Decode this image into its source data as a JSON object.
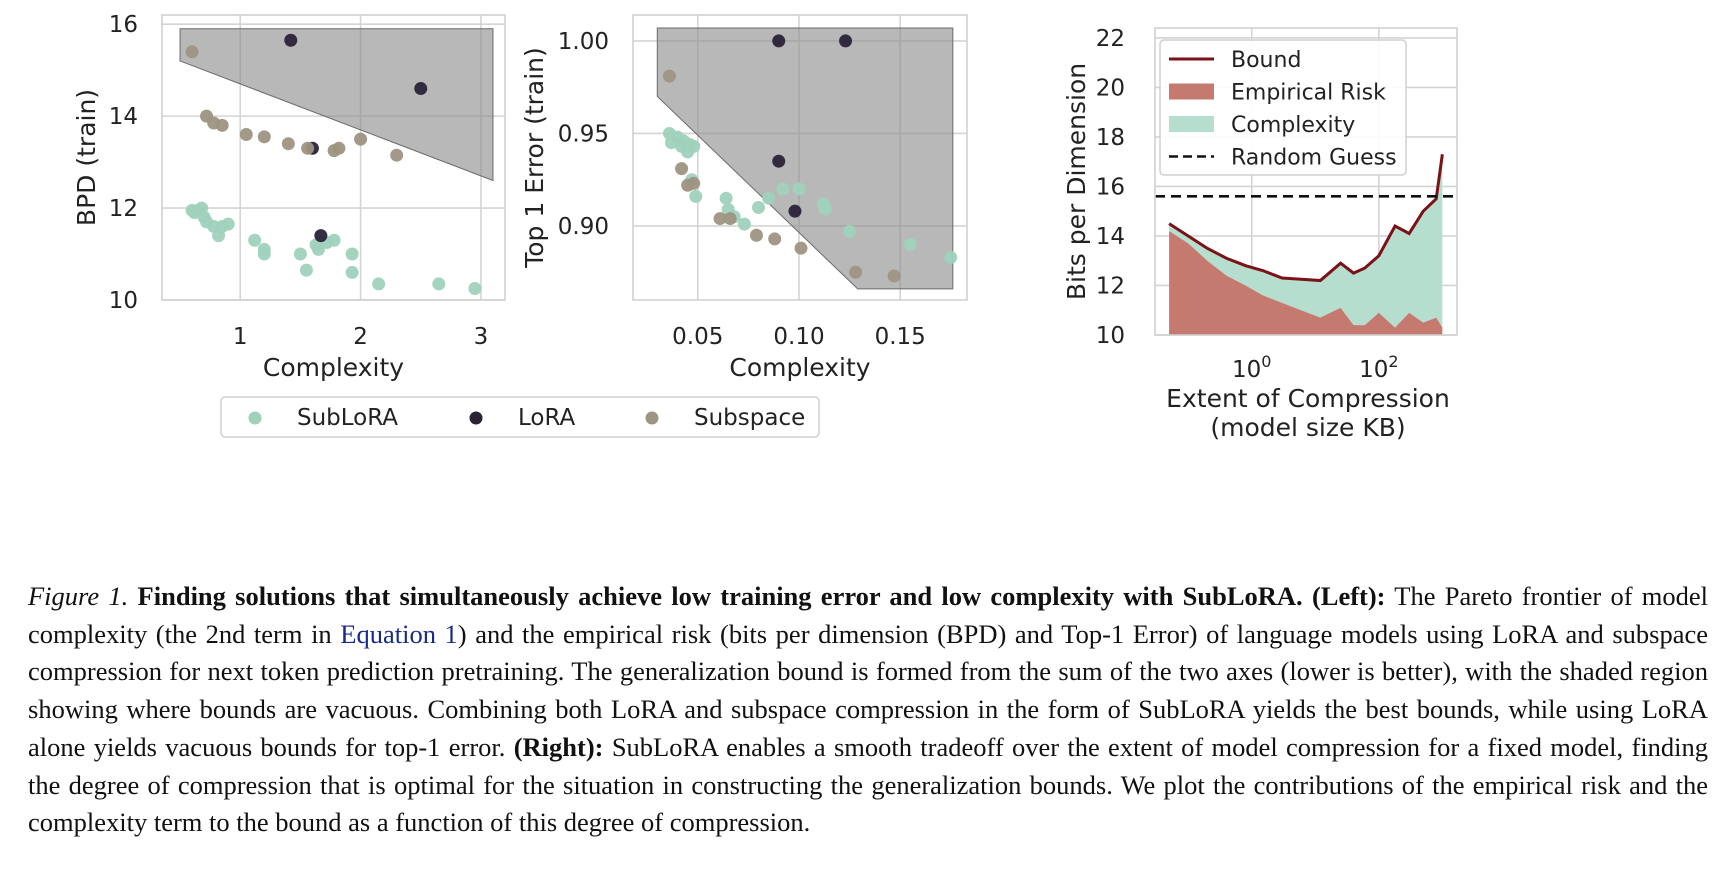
{
  "chart_data": [
    {
      "type": "scatter",
      "ylabel": "BPD (train)",
      "xlabel": "Complexity",
      "xlim": [
        0.35,
        3.2
      ],
      "ylim": [
        10,
        16.2
      ],
      "xticks": [
        1,
        2,
        3
      ],
      "xtick_labels": [
        "1",
        "2",
        "3"
      ],
      "yticks": [
        10,
        12,
        14,
        16
      ],
      "ytick_labels": [
        "10",
        "12",
        "14",
        "16"
      ],
      "grid": true,
      "shaded_region": [
        [
          0.5,
          15.9
        ],
        [
          3.1,
          15.9
        ],
        [
          3.1,
          12.6
        ],
        [
          0.5,
          15.2
        ]
      ],
      "series": [
        {
          "name": "SubLoRA",
          "color": "#9fd1bd",
          "points": [
            [
              0.6,
              11.95
            ],
            [
              0.62,
              11.9
            ],
            [
              0.65,
              11.95
            ],
            [
              0.68,
              12.0
            ],
            [
              0.7,
              11.8
            ],
            [
              0.72,
              11.7
            ],
            [
              0.78,
              11.6
            ],
            [
              0.82,
              11.4
            ],
            [
              0.85,
              11.6
            ],
            [
              0.9,
              11.65
            ],
            [
              1.12,
              11.3
            ],
            [
              1.2,
              11.0
            ],
            [
              1.2,
              11.1
            ],
            [
              1.5,
              11.0
            ],
            [
              1.55,
              10.65
            ],
            [
              1.63,
              11.2
            ],
            [
              1.65,
              11.1
            ],
            [
              1.72,
              11.25
            ],
            [
              1.78,
              11.3
            ],
            [
              1.93,
              11.0
            ],
            [
              1.93,
              10.6
            ],
            [
              2.15,
              10.35
            ],
            [
              2.65,
              10.35
            ],
            [
              2.95,
              10.25
            ]
          ]
        },
        {
          "name": "LoRA",
          "color": "#2a2338",
          "points": [
            [
              1.42,
              15.65
            ],
            [
              1.6,
              13.3
            ],
            [
              1.67,
              11.4
            ],
            [
              2.5,
              14.6
            ]
          ]
        },
        {
          "name": "Subspace",
          "color": "#9e9482",
          "points": [
            [
              0.6,
              15.4
            ],
            [
              0.72,
              14.0
            ],
            [
              0.78,
              13.85
            ],
            [
              0.85,
              13.8
            ],
            [
              1.05,
              13.6
            ],
            [
              1.2,
              13.55
            ],
            [
              1.4,
              13.4
            ],
            [
              1.56,
              13.3
            ],
            [
              1.78,
              13.25
            ],
            [
              1.82,
              13.3
            ],
            [
              2.0,
              13.5
            ],
            [
              2.3,
              13.15
            ]
          ]
        }
      ]
    },
    {
      "type": "scatter",
      "ylabel": "Top 1 Error (train)",
      "xlabel": "Complexity",
      "xlim": [
        0.018,
        0.183
      ],
      "ylim": [
        0.86,
        1.014
      ],
      "xticks": [
        0.05,
        0.1,
        0.15
      ],
      "xtick_labels": [
        "0.05",
        "0.10",
        "0.15"
      ],
      "yticks": [
        0.9,
        0.95,
        1.0
      ],
      "ytick_labels": [
        "0.90",
        "0.95",
        "1.00"
      ],
      "grid": true,
      "shaded_region": [
        [
          0.03,
          1.007
        ],
        [
          0.176,
          1.007
        ],
        [
          0.176,
          0.866
        ],
        [
          0.129,
          0.866
        ],
        [
          0.03,
          0.97
        ]
      ],
      "series": [
        {
          "name": "SubLoRA",
          "color": "#9fd1bd",
          "points": [
            [
              0.036,
              0.95
            ],
            [
              0.037,
              0.945
            ],
            [
              0.04,
              0.948
            ],
            [
              0.042,
              0.943
            ],
            [
              0.043,
              0.946
            ],
            [
              0.045,
              0.94
            ],
            [
              0.046,
              0.944
            ],
            [
              0.048,
              0.943
            ],
            [
              0.047,
              0.925
            ],
            [
              0.049,
              0.916
            ],
            [
              0.064,
              0.915
            ],
            [
              0.065,
              0.909
            ],
            [
              0.068,
              0.905
            ],
            [
              0.073,
              0.901
            ],
            [
              0.08,
              0.91
            ],
            [
              0.085,
              0.915
            ],
            [
              0.092,
              0.92
            ],
            [
              0.1,
              0.92
            ],
            [
              0.112,
              0.912
            ],
            [
              0.113,
              0.909
            ],
            [
              0.125,
              0.897
            ],
            [
              0.155,
              0.89
            ],
            [
              0.175,
              0.883
            ]
          ]
        },
        {
          "name": "LoRA",
          "color": "#2a2338",
          "points": [
            [
              0.09,
              1.0
            ],
            [
              0.123,
              1.0
            ],
            [
              0.09,
              0.935
            ],
            [
              0.098,
              0.908
            ]
          ]
        },
        {
          "name": "Subspace",
          "color": "#9e9482",
          "points": [
            [
              0.036,
              0.981
            ],
            [
              0.042,
              0.931
            ],
            [
              0.045,
              0.922
            ],
            [
              0.048,
              0.923
            ],
            [
              0.061,
              0.904
            ],
            [
              0.066,
              0.904
            ],
            [
              0.079,
              0.895
            ],
            [
              0.088,
              0.893
            ],
            [
              0.101,
              0.888
            ],
            [
              0.128,
              0.875
            ],
            [
              0.147,
              0.873
            ]
          ]
        }
      ],
      "legend": {
        "position": "bottom-center",
        "entries": [
          {
            "label": "SubLoRA",
            "color": "#9fd1bd"
          },
          {
            "label": "LoRA",
            "color": "#2a2338"
          },
          {
            "label": "Subspace",
            "color": "#9e9482"
          }
        ]
      }
    },
    {
      "type": "area",
      "ylabel": "Bits per Dimension",
      "xlabel": "Extent of Compression",
      "xlabel_line2": "(model size KB)",
      "x_scale": "log",
      "xlim": [
        0.03,
        1700
      ],
      "ylim": [
        10,
        22.4
      ],
      "xticks": [
        1,
        100
      ],
      "xtick_labels": [
        {
          "base": "10",
          "exp": "0"
        },
        {
          "base": "10",
          "exp": "2"
        }
      ],
      "yticks": [
        10,
        12,
        14,
        16,
        18,
        20,
        22
      ],
      "ytick_labels": [
        "10",
        "12",
        "14",
        "16",
        "18",
        "20",
        "22"
      ],
      "grid": true,
      "x": [
        0.05,
        0.1,
        0.2,
        0.4,
        0.8,
        1.5,
        3,
        6,
        12,
        25,
        40,
        60,
        100,
        180,
        300,
        500,
        800,
        1000
      ],
      "empirical_risk": [
        14.2,
        13.7,
        13.0,
        12.4,
        12.0,
        11.6,
        11.3,
        11.0,
        10.7,
        11.1,
        10.4,
        10.4,
        10.9,
        10.3,
        10.9,
        10.5,
        10.7,
        10.3
      ],
      "bound": [
        14.5,
        14.0,
        13.5,
        13.1,
        12.8,
        12.6,
        12.3,
        12.25,
        12.2,
        12.9,
        12.5,
        12.7,
        13.2,
        14.4,
        14.1,
        15.0,
        15.5,
        17.3
      ],
      "random_guess": 15.6,
      "colors": {
        "bound": "#7a1218",
        "empirical_risk": "#c57a6f",
        "complexity": "#b6dece",
        "random_guess": "#111111"
      },
      "legend": {
        "position": "top-left",
        "entries": [
          {
            "label": "Bound",
            "kind": "line",
            "color": "#7a1218"
          },
          {
            "label": "Empirical Risk",
            "kind": "patch",
            "color": "#c57a6f"
          },
          {
            "label": "Complexity",
            "kind": "patch",
            "color": "#b6dece"
          },
          {
            "label": "Random Guess",
            "kind": "dashed",
            "color": "#111111"
          }
        ]
      }
    }
  ],
  "caption": {
    "figure_label": "Figure 1.",
    "bold_title": "Finding solutions that simultaneously achieve low training error and low complexity with SubLoRA.",
    "left_label": "(Left):",
    "text_1": "The Pareto frontier of model complexity (the 2nd term in",
    "eq_ref": "Equation 1",
    "text_2": ") and the empirical risk (bits per dimension (BPD) and Top-1 Error) of language models using LoRA and subspace compression for next token prediction pretraining. The generalization bound is formed from the sum of the two axes (lower is better), with the shaded region showing where bounds are vacuous. Combining both LoRA and subspace compression in the form of SubLoRA yields the best bounds, while using LoRA alone yields vacuous bounds for top-1 error.",
    "right_label": "(Right):",
    "text_3": "SubLoRA enables a smooth tradeoff over the extent of model compression for a fixed model, finding the degree of compression that is optimal for the situation in constructing the generalization bounds. We plot the contributions of the empirical risk and the complexity term to the bound as a function of this degree of compression."
  }
}
